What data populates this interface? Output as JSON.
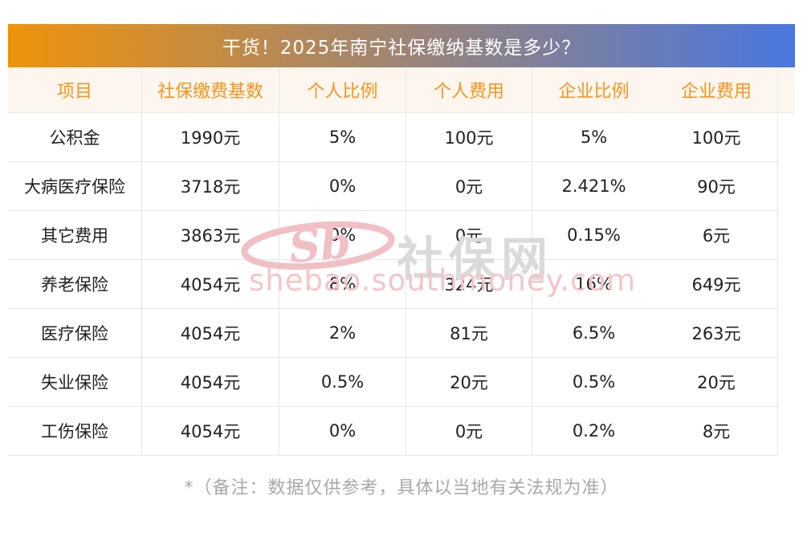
{
  "banner": {
    "title": "干货！2025年南宁社保缴纳基数是多少？",
    "gradient_from": "#f0930a",
    "gradient_to": "#4a77e0",
    "title_color": "#ffffff"
  },
  "table": {
    "header_bg": "#fdf6ee",
    "header_text_color": "#f7941e",
    "border_color": "#e3e6ee",
    "columns": [
      "项目",
      "社保缴费基数",
      "个人比例",
      "个人费用",
      "企业比例",
      "企业费用"
    ],
    "rows": [
      [
        "公积金",
        "1990元",
        "5%",
        "100元",
        "5%",
        "100元"
      ],
      [
        "大病医疗保险",
        "3718元",
        "0%",
        "0元",
        "2.421%",
        "90元"
      ],
      [
        "其它费用",
        "3863元",
        "0%",
        "0元",
        "0.15%",
        "6元"
      ],
      [
        "养老保险",
        "4054元",
        "8%",
        "324元",
        "16%",
        "649元"
      ],
      [
        "医疗保险",
        "4054元",
        "2%",
        "81元",
        "6.5%",
        "263元"
      ],
      [
        "失业保险",
        "4054元",
        "0.5%",
        "20元",
        "0.5%",
        "20元"
      ],
      [
        "工伤保险",
        "4054元",
        "0%",
        "0元",
        "0.2%",
        "8元"
      ]
    ]
  },
  "watermark": {
    "logo_text": "Sb",
    "site_name": "社保网",
    "site_url": "shebao.southmoney.com",
    "logo_color": "#f0c0c4",
    "name_color": "#dadada",
    "url_color": "#f3c6c9"
  },
  "footnote": "*（备注：数据仅供参考，具体以当地有关法规为准）",
  "chart_data": {
    "type": "table",
    "title": "干货！2025年南宁社保缴纳基数是多少？",
    "columns": [
      "项目",
      "社保缴费基数",
      "个人比例",
      "个人费用",
      "企业比例",
      "企业费用"
    ],
    "rows": [
      [
        "公积金",
        "1990元",
        "5%",
        "100元",
        "5%",
        "100元"
      ],
      [
        "大病医疗保险",
        "3718元",
        "0%",
        "0元",
        "2.421%",
        "90元"
      ],
      [
        "其它费用",
        "3863元",
        "0%",
        "0元",
        "0.15%",
        "6元"
      ],
      [
        "养老保险",
        "4054元",
        "8%",
        "324元",
        "16%",
        "649元"
      ],
      [
        "医疗保险",
        "4054元",
        "2%",
        "81元",
        "6.5%",
        "263元"
      ],
      [
        "失业保险",
        "4054元",
        "0.5%",
        "20元",
        "0.5%",
        "20元"
      ],
      [
        "工伤保险",
        "4054元",
        "0%",
        "0元",
        "0.2%",
        "8元"
      ]
    ],
    "note": "*（备注：数据仅供参考，具体以当地有关法规为准）"
  }
}
